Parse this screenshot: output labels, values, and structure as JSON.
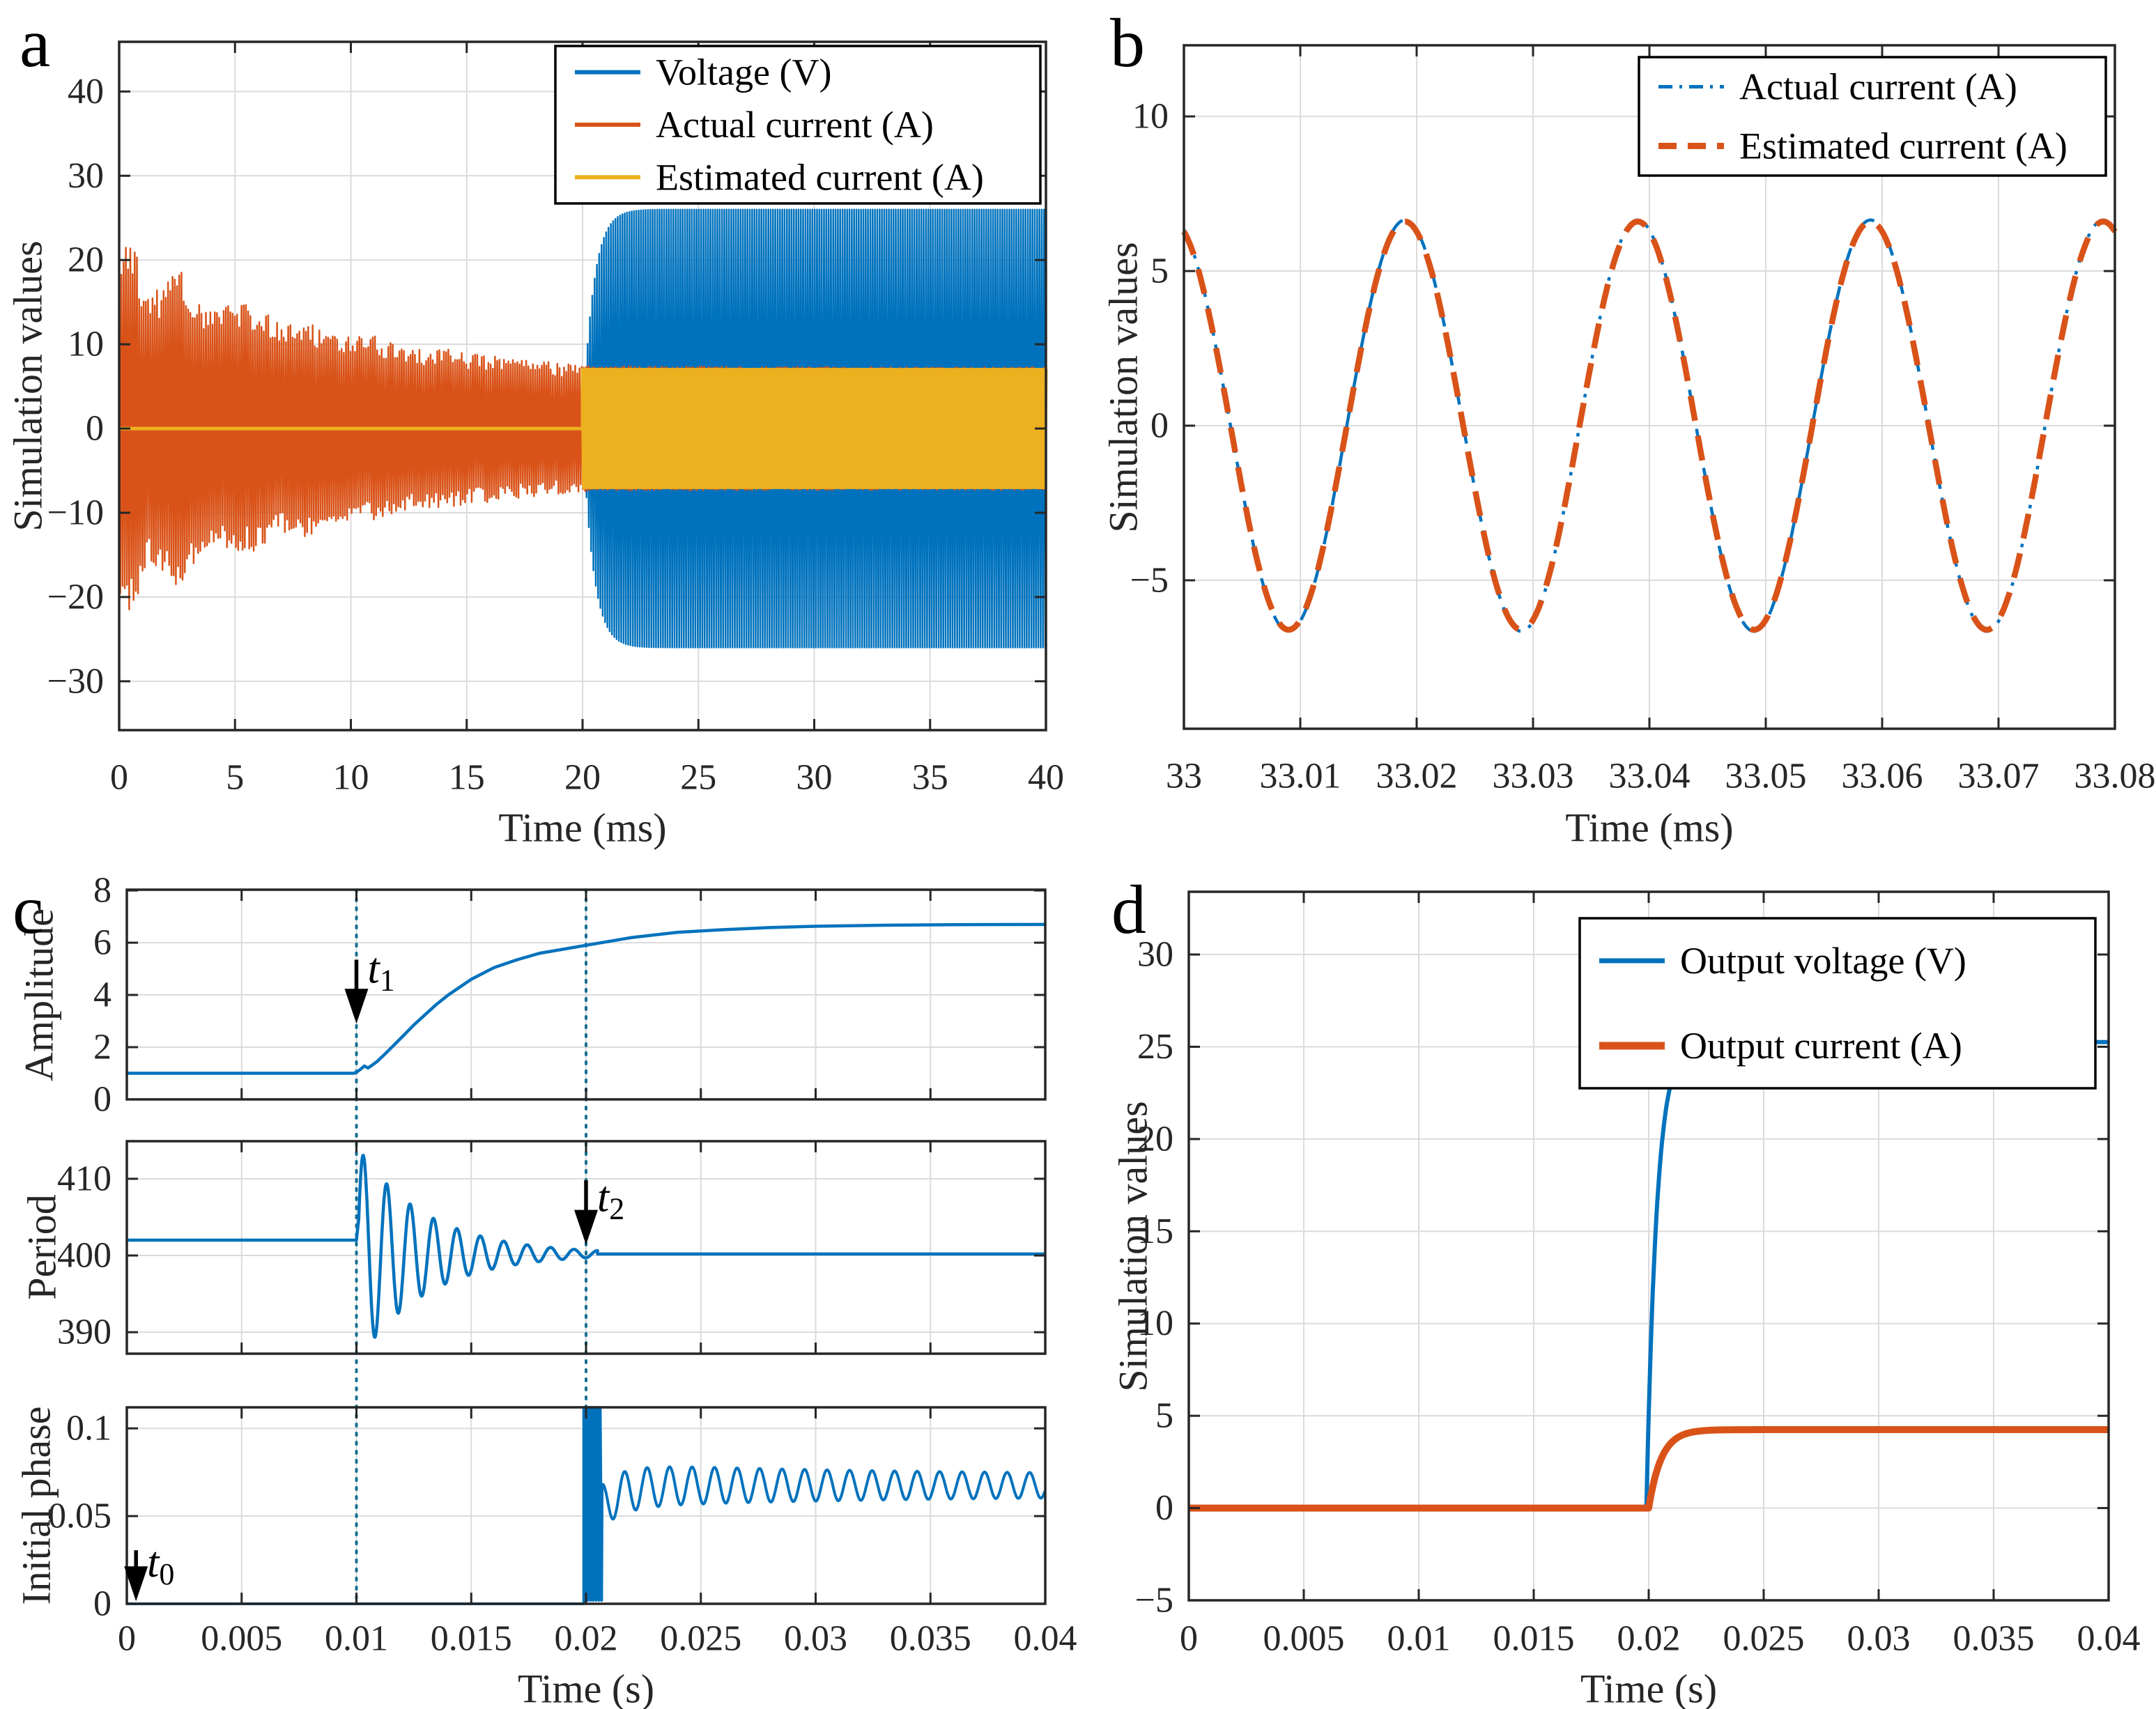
{
  "figure": {
    "panel_letters": {
      "a": "a",
      "b": "b",
      "c": "c",
      "d": "d"
    }
  },
  "colors": {
    "blue": "#0072BD",
    "orange": "#D95319",
    "yellow": "#EDB120",
    "grid": "#DBDBDB",
    "axis": "#262626",
    "text": "#000000",
    "vline": "#176E91",
    "legend_border": "#000000",
    "legend_bg": "#FFFFFF"
  },
  "chart_data": [
    {
      "id": "a",
      "type": "line",
      "xlabel": "Time (ms)",
      "ylabel": "Simulation values",
      "xlim": [
        0,
        40
      ],
      "ylim": [
        -35.8,
        45.9
      ],
      "xticks": [
        0,
        5,
        10,
        15,
        20,
        25,
        30,
        35,
        40
      ],
      "yticks": [
        -30,
        -20,
        -10,
        0,
        10,
        20,
        30,
        40
      ],
      "grid": true,
      "legend": {
        "position": "top-right",
        "entries": [
          {
            "label": "Voltage (V)",
            "color": "blue",
            "style": "solid",
            "lw": 6
          },
          {
            "label": "Actual current (A)",
            "color": "orange",
            "style": "solid",
            "lw": 6
          },
          {
            "label": "Estimated current (A)",
            "color": "yellow",
            "style": "solid",
            "lw": 6
          }
        ]
      },
      "series": [
        {
          "name": "Voltage (V)",
          "color": "blue",
          "type": "osc_band",
          "x0": 20,
          "x1": 40,
          "max_amp": 26,
          "tau": 0.45,
          "step": 0.05,
          "lw": 2.5,
          "desc": "zero before 20 ms, then high-frequency oscillation with envelope rising to +/-26"
        },
        {
          "name": "Actual current (A)",
          "color": "orange",
          "type": "noisy_band",
          "x0": 0,
          "x1": 40,
          "step": 0.048,
          "seed": 7,
          "lw": 2.5,
          "envelope": [
            [
              0,
              18.5
            ],
            [
              0.25,
              22.3
            ],
            [
              0.7,
              20.8
            ],
            [
              1.2,
              15.3
            ],
            [
              2,
              16.8
            ],
            [
              2.6,
              18.6
            ],
            [
              3.2,
              15.8
            ],
            [
              4,
              13.4
            ],
            [
              5,
              14.7
            ],
            [
              6,
              14.2
            ],
            [
              7,
              12.2
            ],
            [
              8,
              12.7
            ],
            [
              9,
              11.2
            ],
            [
              10,
              10.6
            ],
            [
              11,
              10.9
            ],
            [
              12,
              9.6
            ],
            [
              13,
              9.2
            ],
            [
              14,
              9.4
            ],
            [
              15,
              8.7
            ],
            [
              16,
              8.6
            ],
            [
              17,
              8.2
            ],
            [
              18,
              7.9
            ],
            [
              19,
              7.6
            ],
            [
              20,
              7.35
            ],
            [
              20.5,
              7.25
            ],
            [
              40,
              7.15
            ]
          ],
          "noise_switch_x": 20,
          "desc": "noisy decaying oscillation from +/-22 to +/-7.3 before 20 ms, then steady +/-7.15 band"
        },
        {
          "name": "Estimated current (A)",
          "color": "yellow",
          "type": "line_then_band",
          "flat_y": 0,
          "x_switch": 20,
          "x1": 40,
          "amp": 7.0,
          "step": 0.05,
          "lw": 5,
          "desc": "zero line before 20 ms, then steady +/-7 oscillation band"
        }
      ]
    },
    {
      "id": "b",
      "type": "line",
      "xlabel": "Time (ms)",
      "ylabel": "Simulation values",
      "xlim": [
        33,
        33.08
      ],
      "ylim": [
        -9.8,
        12.3
      ],
      "xticks": [
        33,
        33.01,
        33.02,
        33.03,
        33.04,
        33.05,
        33.06,
        33.07,
        33.08
      ],
      "xtick_labels": [
        "33",
        "33.01",
        "33.02",
        "33.03",
        "33.04",
        "33.05",
        "33.06",
        "33.07",
        "33.08"
      ],
      "yticks": [
        -5,
        0,
        5,
        10
      ],
      "grid": true,
      "legend": {
        "position": "top-right",
        "entries": [
          {
            "label": "Actual current (A)",
            "color": "blue",
            "style": "dashdot",
            "lw": 5
          },
          {
            "label": "Estimated current (A)",
            "color": "orange",
            "style": "dashed",
            "lw": 9
          }
        ]
      },
      "series": [
        {
          "name": "Actual current (A)",
          "color": "blue",
          "type": "sine",
          "amp": 6.65,
          "period": 0.02,
          "peak_x": 33.019,
          "style": "dashdot",
          "lw": 4.5
        },
        {
          "name": "Estimated current (A)",
          "color": "orange",
          "type": "sine",
          "amp": 6.6,
          "period": 0.02,
          "peak_x": 33.019,
          "style": "dashed",
          "lw": 8.5
        }
      ]
    },
    {
      "id": "c",
      "type": "line",
      "xlabel": "Time (s)",
      "xlim": [
        0,
        0.04
      ],
      "xticks": [
        0,
        0.005,
        0.01,
        0.015,
        0.02,
        0.025,
        0.03,
        0.035,
        0.04
      ],
      "xtick_labels": [
        "0",
        "0.005",
        "0.01",
        "0.015",
        "0.02",
        "0.025",
        "0.03",
        "0.035",
        "0.04"
      ],
      "grid": true,
      "vlines": {
        "x": [
          0.01,
          0.02
        ],
        "style": "dotted",
        "lw": 4
      },
      "subplots": [
        {
          "ylabel": "Amplitude",
          "ylim": [
            0,
            8.03
          ],
          "yticks": [
            0,
            2,
            4,
            6,
            8
          ],
          "series": [
            {
              "color": "blue",
              "type": "points",
              "lw": 4.5,
              "pts": [
                [
                  0,
                  1
                ],
                [
                  0.0099,
                  1
                ],
                [
                  0.0101,
                  1.1
                ],
                [
                  0.01035,
                  1.28
                ],
                [
                  0.0105,
                  1.2
                ],
                [
                  0.0107,
                  1.32
                ],
                [
                  0.0109,
                  1.45
                ],
                [
                  0.0112,
                  1.7
                ],
                [
                  0.0116,
                  2.05
                ],
                [
                  0.012,
                  2.4
                ],
                [
                  0.0125,
                  2.85
                ],
                [
                  0.013,
                  3.25
                ],
                [
                  0.0135,
                  3.65
                ],
                [
                  0.014,
                  4.0
                ],
                [
                  0.015,
                  4.6
                ],
                [
                  0.016,
                  5.05
                ],
                [
                  0.017,
                  5.35
                ],
                [
                  0.018,
                  5.6
                ],
                [
                  0.019,
                  5.75
                ],
                [
                  0.02,
                  5.9
                ],
                [
                  0.021,
                  6.05
                ],
                [
                  0.022,
                  6.2
                ],
                [
                  0.024,
                  6.4
                ],
                [
                  0.026,
                  6.5
                ],
                [
                  0.028,
                  6.58
                ],
                [
                  0.03,
                  6.63
                ],
                [
                  0.033,
                  6.67
                ],
                [
                  0.036,
                  6.69
                ],
                [
                  0.04,
                  6.7
                ]
              ]
            }
          ],
          "arrow": {
            "x": 0.01,
            "y_tail": 5.35,
            "y_tip": 2.9,
            "label": "t",
            "sub": "1",
            "label_y": 5.0
          }
        },
        {
          "ylabel": "Period",
          "ylim": [
            387.2,
            414.9
          ],
          "yticks": [
            390,
            400,
            410
          ],
          "series": [
            {
              "color": "blue",
              "type": "damped_osc",
              "lw": 4.5,
              "flat_y": 402,
              "t_change": 0.01,
              "settle_y": 400.2,
              "amp": 14.2,
              "tau": 0.003,
              "period": 0.00102,
              "peak_t": 0.0103,
              "t_settle": 0.0205
            }
          ],
          "arrow": {
            "x": 0.02,
            "y_tail": 409.8,
            "y_tip": 401.4,
            "label": "t",
            "sub": "2",
            "label_y": 407.6
          }
        },
        {
          "ylabel": "Initial phase",
          "ylim": [
            0,
            0.112
          ],
          "yticks": [
            0,
            0.05,
            0.1
          ],
          "ytick_labels": [
            "0",
            "0.05",
            "0.1"
          ],
          "series": [
            {
              "color": "blue",
              "type": "phase_burst",
              "lw": 4,
              "flat_y": 0,
              "t_burst0": 0.0199,
              "t_burst1": 0.0207,
              "burst_hi": 0.112,
              "burst_lo": 0.002,
              "mean": 0.0675,
              "dip": 0.012,
              "dip_tau": 0.0009,
              "ripple0": 0.0125,
              "ripple1": 0.006,
              "ripple_tau": 0.012,
              "period": 0.00098,
              "t_end": 0.04
            }
          ],
          "arrow": {
            "x": 0.0004,
            "y_tail": 0.0305,
            "y_tip": 0.0015,
            "label": "t",
            "sub": "0",
            "label_y": 0.0235
          }
        }
      ]
    },
    {
      "id": "d",
      "type": "line",
      "xlabel": "Time (s)",
      "ylabel": "Simulation values",
      "xlim": [
        0,
        0.04
      ],
      "ylim": [
        -5,
        33.4
      ],
      "xticks": [
        0,
        0.005,
        0.01,
        0.015,
        0.02,
        0.025,
        0.03,
        0.035,
        0.04
      ],
      "xtick_labels": [
        "0",
        "0.005",
        "0.01",
        "0.015",
        "0.02",
        "0.025",
        "0.03",
        "0.035",
        "0.04"
      ],
      "yticks": [
        -5,
        0,
        5,
        10,
        15,
        20,
        25,
        30
      ],
      "grid": true,
      "legend": {
        "position": "top-right",
        "entries": [
          {
            "label": "Output voltage (V)",
            "color": "blue",
            "style": "solid",
            "lw": 7
          },
          {
            "label": "Output current (A)",
            "color": "orange",
            "style": "solid",
            "lw": 11
          }
        ]
      },
      "series": [
        {
          "name": "Output voltage (V)",
          "color": "blue",
          "type": "step_exp",
          "x_step": 0.0199,
          "y0": 0,
          "y_final": 25.25,
          "tau": 0.00045,
          "overshoot": 0.25,
          "lw": 6
        },
        {
          "name": "Output current (A)",
          "color": "orange",
          "type": "step_exp",
          "x_step": 0.02,
          "y0": 0,
          "y_final": 4.25,
          "tau": 0.00055,
          "overshoot": 0,
          "lw": 10
        }
      ]
    }
  ]
}
